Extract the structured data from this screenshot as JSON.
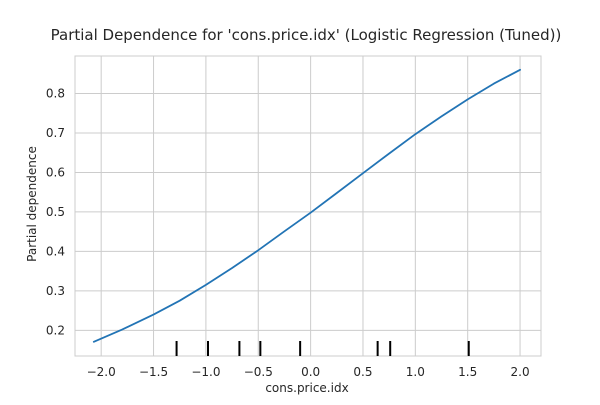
{
  "chart_data": {
    "type": "line",
    "title": "Partial Dependence for 'cons.price.idx' (Logistic Regression (Tuned))",
    "xlabel": "cons.price.idx",
    "ylabel": "Partial dependence",
    "xlim": [
      -2.25,
      2.2
    ],
    "ylim": [
      0.135,
      0.895
    ],
    "x_ticks": [
      -2.0,
      -1.5,
      -1.0,
      -0.5,
      0.0,
      0.5,
      1.0,
      1.5,
      2.0
    ],
    "x_tick_labels": [
      "−2.0",
      "−1.5",
      "−1.0",
      "−0.5",
      "0.0",
      "0.5",
      "1.0",
      "1.5",
      "2.0"
    ],
    "y_ticks": [
      0.2,
      0.3,
      0.4,
      0.5,
      0.6,
      0.7,
      0.8
    ],
    "y_tick_labels": [
      "0.2",
      "0.3",
      "0.4",
      "0.5",
      "0.6",
      "0.7",
      "0.8"
    ],
    "grid": true,
    "line_color": "#2274b5",
    "series": [
      {
        "x": [
          -2.07,
          -1.8,
          -1.5,
          -1.25,
          -1.0,
          -0.75,
          -0.5,
          -0.25,
          0.0,
          0.25,
          0.5,
          0.75,
          1.0,
          1.25,
          1.5,
          1.75,
          2.0
        ],
        "y": [
          0.171,
          0.202,
          0.24,
          0.275,
          0.315,
          0.358,
          0.403,
          0.451,
          0.498,
          0.548,
          0.598,
          0.648,
          0.697,
          0.742,
          0.785,
          0.825,
          0.86
        ]
      }
    ],
    "rug": [
      -1.28,
      -0.98,
      -0.68,
      -0.48,
      -0.1,
      0.64,
      0.76,
      1.51
    ]
  }
}
